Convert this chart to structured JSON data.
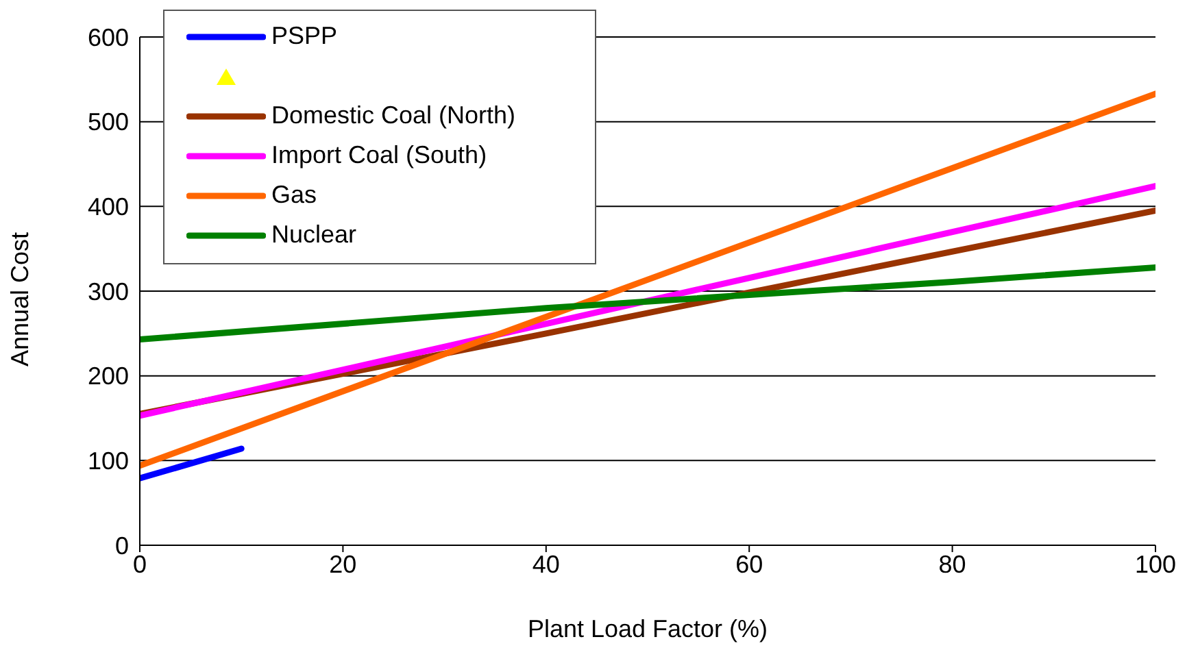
{
  "chart_data": {
    "type": "line",
    "xlabel": "Plant Load Factor (%)",
    "ylabel": "Annual Cost",
    "xlim": [
      0,
      100
    ],
    "xticks": [
      0,
      20,
      40,
      60,
      80,
      100
    ],
    "ylim": [
      0,
      600
    ],
    "yticks": [
      0,
      100,
      200,
      300,
      400,
      500,
      600
    ],
    "grid": "y",
    "legend": "top left",
    "marker": "none",
    "line_style": "solid",
    "series": [
      {
        "name": "PSPP",
        "color": "#0000ff",
        "x": [
          0,
          10
        ],
        "values": [
          79,
          114
        ]
      },
      {
        "name": "Domestic Coal (North)",
        "color": "#993300",
        "x": [
          0,
          40,
          100
        ],
        "values": [
          155,
          250,
          395
        ]
      },
      {
        "name": "Import Coal (South)",
        "color": "#ff00ff",
        "x": [
          0,
          100
        ],
        "values": [
          153,
          424
        ]
      },
      {
        "name": "Gas",
        "color": "#ff6600",
        "x": [
          0,
          100
        ],
        "values": [
          94,
          533
        ]
      },
      {
        "name": "Nuclear",
        "color": "#008000",
        "x": [
          0,
          40,
          80,
          100
        ],
        "values": [
          243,
          280,
          311,
          328
        ]
      }
    ]
  }
}
